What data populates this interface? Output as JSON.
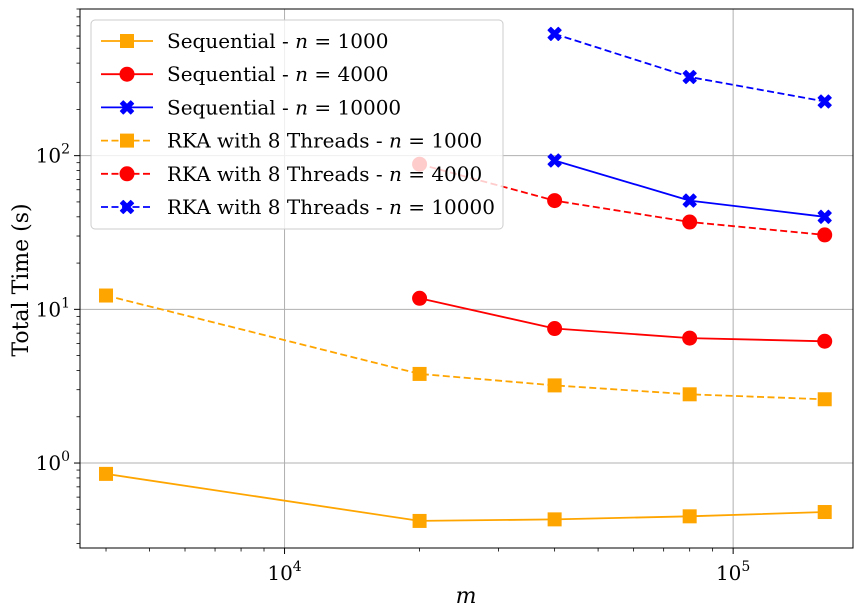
{
  "chart_data": {
    "type": "line",
    "xscale": "log",
    "yscale": "log",
    "xlim": [
      3500,
      185000
    ],
    "ylim": [
      0.28,
      900
    ],
    "xlabel": "m",
    "ylabel": "Total Time (s)",
    "grid": true,
    "legend_position": "top-left",
    "xticks": [
      {
        "value": 10000,
        "base": "10",
        "exp": "4"
      },
      {
        "value": 100000,
        "base": "10",
        "exp": "5"
      }
    ],
    "yticks": [
      {
        "value": 1,
        "base": "10",
        "exp": "0"
      },
      {
        "value": 10,
        "base": "10",
        "exp": "1"
      },
      {
        "value": 100,
        "base": "10",
        "exp": "2"
      }
    ],
    "series": [
      {
        "name": "Sequential - n = 1000",
        "label_prefix": "Sequential - ",
        "label_n": "n",
        "label_suffix": " = 1000",
        "color": "#FFA500",
        "linestyle": "solid",
        "marker": "square",
        "x": [
          4000,
          20000,
          40000,
          80000,
          160000
        ],
        "y": [
          0.85,
          0.42,
          0.43,
          0.45,
          0.48
        ]
      },
      {
        "name": "Sequential - n = 4000",
        "label_prefix": "Sequential - ",
        "label_n": "n",
        "label_suffix": " = 4000",
        "color": "#FF0000",
        "linestyle": "solid",
        "marker": "circle",
        "x": [
          20000,
          40000,
          80000,
          160000
        ],
        "y": [
          11.8,
          7.5,
          6.5,
          6.2
        ]
      },
      {
        "name": "Sequential - n = 10000",
        "label_prefix": "Sequential - ",
        "label_n": "n",
        "label_suffix": " = 10000",
        "color": "#0000FF",
        "linestyle": "solid",
        "marker": "x",
        "x": [
          40000,
          80000,
          160000
        ],
        "y": [
          93,
          51,
          40
        ]
      },
      {
        "name": "RKA with 8 Threads - n = 1000",
        "label_prefix": "RKA with 8 Threads - ",
        "label_n": "n",
        "label_suffix": " = 1000",
        "color": "#FFA500",
        "linestyle": "dashed",
        "marker": "square",
        "x": [
          4000,
          20000,
          40000,
          80000,
          160000
        ],
        "y": [
          12.3,
          3.8,
          3.2,
          2.8,
          2.6
        ]
      },
      {
        "name": "RKA with 8 Threads - n = 4000",
        "label_prefix": "RKA with 8 Threads - ",
        "label_n": "n",
        "label_suffix": " = 4000",
        "color": "#FF0000",
        "linestyle": "dashed",
        "marker": "circle",
        "x": [
          20000,
          40000,
          80000,
          160000
        ],
        "y": [
          88,
          51,
          37,
          30.5
        ]
      },
      {
        "name": "RKA with 8 Threads - n = 10000",
        "label_prefix": "RKA with 8 Threads - ",
        "label_n": "n",
        "label_suffix": " = 10000",
        "color": "#0000FF",
        "linestyle": "dashed",
        "marker": "x",
        "x": [
          40000,
          80000,
          160000
        ],
        "y": [
          620,
          325,
          225
        ]
      }
    ]
  }
}
